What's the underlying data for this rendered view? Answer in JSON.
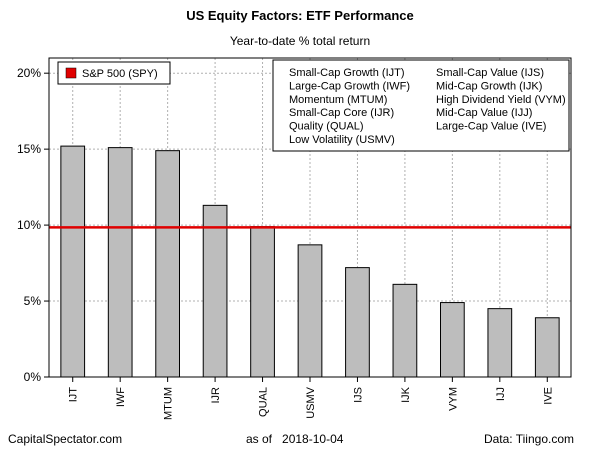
{
  "header": {
    "title": "US Equity Factors: ETF Performance",
    "subtitle": "Year-to-date % total return"
  },
  "footer": {
    "source_left": "CapitalSpectator.com",
    "as_of_label": "as of",
    "as_of_date": "2018-10-04",
    "source_right": "Data: Tiingo.com"
  },
  "chart_data": {
    "type": "bar",
    "title": "US Equity Factors: ETF Performance",
    "subtitle": "Year-to-date % total return",
    "categories": [
      "IJT",
      "IWF",
      "MTUM",
      "IJR",
      "QUAL",
      "USMV",
      "IJS",
      "IJK",
      "VYM",
      "IJJ",
      "IVE"
    ],
    "values": [
      15.2,
      15.1,
      14.9,
      11.3,
      9.9,
      8.7,
      7.2,
      6.1,
      4.9,
      4.5,
      3.9
    ],
    "bar_color": "#bdbdbd",
    "ylim": [
      0,
      21
    ],
    "yticks": [
      0,
      5,
      10,
      15,
      20
    ],
    "ytick_labels": [
      "0%",
      "5%",
      "10%",
      "15%",
      "20%"
    ],
    "grid": true,
    "reference_line": {
      "name": "S&P 500 (SPY)",
      "value": 9.85,
      "color": "#e00000"
    },
    "legend": {
      "placement": "top-left",
      "items": [
        {
          "label": "S&P 500 (SPY)",
          "color": "#e00000"
        }
      ]
    },
    "ticker_key": {
      "placement": "top-right",
      "col1": [
        "Small-Cap Growth (IJT)",
        "Large-Cap Growth (IWF)",
        "Momentum (MTUM)",
        "Small-Cap Core (IJR)",
        "Quality (QUAL)",
        "Low Volatility (USMV)"
      ],
      "col2": [
        "Small-Cap Value (IJS)",
        "Mid-Cap Growth (IJK)",
        "High Dividend Yield (VYM)",
        "Mid-Cap Value (IJJ)",
        "Large-Cap Value (IVE)"
      ]
    }
  }
}
